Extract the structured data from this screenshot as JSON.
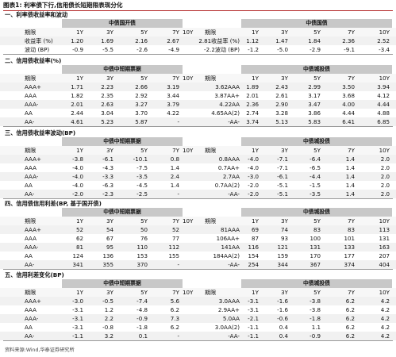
{
  "title": "图表1:  利率债下行,信用债长短期限表现分化",
  "source": "资料来源:Wind,华泰证券研究所",
  "sections": [
    {
      "title": "一、利率债收益率和波动",
      "group_left": "中债国开债",
      "group_right": "中债国债",
      "header_left": [
        "期限",
        "1Y",
        "3Y",
        "5Y",
        "7Y",
        "10Y"
      ],
      "header_right": [
        "期限",
        "1Y",
        "3Y",
        "5Y",
        "7Y",
        "10Y"
      ],
      "rows": [
        {
          "left": [
            "收益率 (%)",
            "1.20",
            "1.69",
            "2.16",
            "2.67"
          ],
          "right": [
            "2.81收益率 (%)",
            "1.12",
            "1.47",
            "1.84",
            "2.36",
            "2.52"
          ]
        },
        {
          "left": [
            "波动 (BP)",
            "-0.9",
            "-5.5",
            "-2.6",
            "-4.9"
          ],
          "right": [
            "-2.2波动 (BP)",
            "-1.2",
            "-5.0",
            "-2.9",
            "-9.1",
            "-3.4"
          ]
        }
      ]
    },
    {
      "title": "二、信用债收益率(%)",
      "group_left": "中债中短期票据",
      "group_right": "中债城投债",
      "header_left": [
        "期限",
        "1Y",
        "3Y",
        "5Y",
        "7Y",
        "10Y"
      ],
      "header_right": [
        "期限",
        "1Y",
        "3Y",
        "5Y",
        "7Y",
        "10Y"
      ],
      "rows": [
        {
          "left": [
            "AAA+",
            "1.71",
            "2.23",
            "2.66",
            "3.19"
          ],
          "right": [
            "3.62AAA",
            "1.89",
            "2.43",
            "2.99",
            "3.50",
            "3.94"
          ]
        },
        {
          "left": [
            "AAA",
            "1.82",
            "2.35",
            "2.92",
            "3.44"
          ],
          "right": [
            "3.87AA+",
            "2.01",
            "2.61",
            "3.17",
            "3.68",
            "4.12"
          ]
        },
        {
          "left": [
            "AAA-",
            "2.01",
            "2.63",
            "3.27",
            "3.79"
          ],
          "right": [
            "4.22AA",
            "2.36",
            "2.90",
            "3.47",
            "4.00",
            "4.44"
          ]
        },
        {
          "left": [
            "AA",
            "2.44",
            "3.04",
            "3.70",
            "4.22"
          ],
          "right": [
            "4.65AA(2)",
            "2.74",
            "3.28",
            "3.86",
            "4.44",
            "4.88"
          ]
        },
        {
          "left": [
            "AA-",
            "4.61",
            "5.23",
            "5.87",
            "-"
          ],
          "right": [
            "-AA-",
            "3.74",
            "5.13",
            "5.83",
            "6.41",
            "6.85"
          ]
        }
      ]
    },
    {
      "title": "三、信用债收益率波动(BP)",
      "group_left": "中债中短期票据",
      "group_right": "中债城投债",
      "header_left": [
        "期限",
        "1Y",
        "3Y",
        "5Y",
        "7Y",
        "10Y"
      ],
      "header_right": [
        "期限",
        "1Y",
        "3Y",
        "5Y",
        "7Y",
        "10Y"
      ],
      "rows": [
        {
          "left": [
            "AAA+",
            "-3.8",
            "-6.1",
            "-10.1",
            "0.8"
          ],
          "right": [
            "0.8AAA",
            "-4.0",
            "-7.1",
            "-6.4",
            "1.4",
            "2.0"
          ]
        },
        {
          "left": [
            "AAA",
            "-4.0",
            "-4.3",
            "-7.5",
            "1.4"
          ],
          "right": [
            "0.7AA+",
            "-4.0",
            "-7.1",
            "-6.5",
            "1.4",
            "2.0"
          ]
        },
        {
          "left": [
            "AAA-",
            "-4.0",
            "-3.3",
            "-3.5",
            "2.4"
          ],
          "right": [
            "2.7AA",
            "-3.0",
            "-6.1",
            "-4.4",
            "1.4",
            "2.0"
          ]
        },
        {
          "left": [
            "AA",
            "-4.0",
            "-6.3",
            "-4.5",
            "1.4"
          ],
          "right": [
            "0.7AA(2)",
            "-2.0",
            "-5.1",
            "-1.5",
            "1.4",
            "2.0"
          ]
        },
        {
          "left": [
            "AA-",
            "-2.0",
            "-2.3",
            "-2.5",
            "-"
          ],
          "right": [
            "-AA-",
            "-2.0",
            "-5.1",
            "-3.5",
            "1.4",
            "2.0"
          ]
        }
      ]
    },
    {
      "title": "四、信用债信用利差(BP, 基于国开债)",
      "group_left": "中债中短期票据",
      "group_right": "中债城投债",
      "header_left": [
        "期限",
        "1Y",
        "3Y",
        "5Y",
        "7Y",
        "10Y"
      ],
      "header_right": [
        "期限",
        "1Y",
        "3Y",
        "5Y",
        "7Y",
        "10Y"
      ],
      "rows": [
        {
          "left": [
            "AAA+",
            "52",
            "54",
            "50",
            "52"
          ],
          "right": [
            "81AAA",
            "69",
            "74",
            "83",
            "83",
            "113"
          ]
        },
        {
          "left": [
            "AAA",
            "62",
            "67",
            "76",
            "77"
          ],
          "right": [
            "106AA+",
            "87",
            "93",
            "100",
            "101",
            "131"
          ]
        },
        {
          "left": [
            "AAA-",
            "81",
            "95",
            "110",
            "112"
          ],
          "right": [
            "141AA",
            "116",
            "121",
            "131",
            "133",
            "163"
          ]
        },
        {
          "left": [
            "AA",
            "124",
            "136",
            "153",
            "155"
          ],
          "right": [
            "184AA(2)",
            "154",
            "159",
            "170",
            "177",
            "207"
          ]
        },
        {
          "left": [
            "AA-",
            "341",
            "355",
            "370",
            "-"
          ],
          "right": [
            "-AA-",
            "254",
            "344",
            "367",
            "374",
            "404"
          ]
        }
      ]
    },
    {
      "title": "五、信用利差变化(BP)",
      "group_left": "中债中短期票据",
      "group_right": "中债城投债",
      "header_left": [
        "期限",
        "1Y",
        "3Y",
        "5Y",
        "7Y",
        "10Y"
      ],
      "header_right": [
        "期限",
        "1Y",
        "3Y",
        "5Y",
        "7Y",
        "10Y"
      ],
      "rows": [
        {
          "left": [
            "AAA+",
            "-3.0",
            "-0.5",
            "-7.4",
            "5.6"
          ],
          "right": [
            "3.0AAA",
            "-3.1",
            "-1.6",
            "-3.8",
            "6.2",
            "4.2"
          ]
        },
        {
          "left": [
            "AAA",
            "-3.1",
            "1.2",
            "-4.8",
            "6.2"
          ],
          "right": [
            "2.9AA+",
            "-3.1",
            "-1.6",
            "-3.8",
            "6.2",
            "4.2"
          ]
        },
        {
          "left": [
            "AAA-",
            "-3.1",
            "2.2",
            "-0.9",
            "7.3"
          ],
          "right": [
            "5.0AA",
            "-2.1",
            "-0.6",
            "-1.8",
            "6.2",
            "4.2"
          ]
        },
        {
          "left": [
            "AA",
            "-3.1",
            "-0.8",
            "-1.8",
            "6.2"
          ],
          "right": [
            "3.0AA(2)",
            "-1.1",
            "0.4",
            "1.1",
            "6.2",
            "4.2"
          ]
        },
        {
          "left": [
            "AA-",
            "-1.1",
            "3.2",
            "0.1",
            "-"
          ],
          "right": [
            "-AA-",
            "-1.1",
            "0.4",
            "-0.9",
            "6.2",
            "4.2"
          ]
        }
      ]
    }
  ]
}
